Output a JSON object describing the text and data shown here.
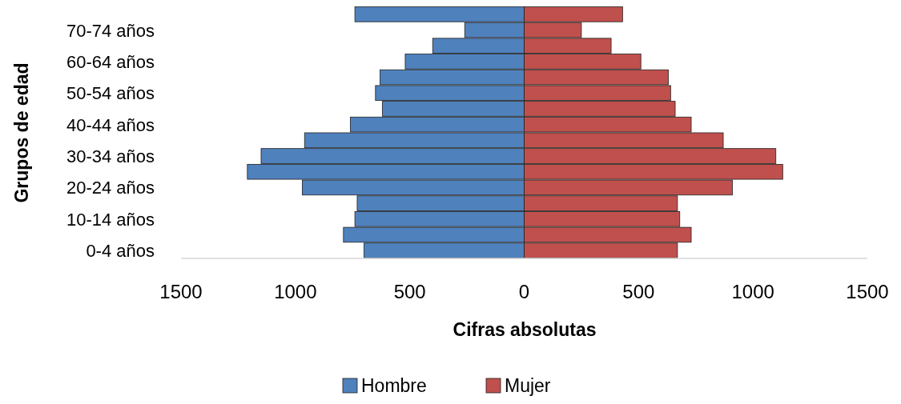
{
  "chart_data": {
    "type": "bar",
    "orientation": "horizontal",
    "stacked": true,
    "xlabel": "Cifras absolutas",
    "ylabel": "Grupos de edad",
    "categories": [
      null,
      "70-74 años",
      null,
      "60-64 años",
      null,
      "50-54 años",
      null,
      "40-44 años",
      null,
      "30-34 años",
      null,
      "20-24 años",
      null,
      "10-14 años",
      null,
      "0-4 años"
    ],
    "series": [
      {
        "name": "Hombre",
        "color": "#4f81bd",
        "values": [
          -740,
          -260,
          -400,
          -520,
          -630,
          -650,
          -620,
          -760,
          -960,
          -1150,
          -1210,
          -970,
          -730,
          -740,
          -790,
          -700
        ]
      },
      {
        "name": "Mujer",
        "color": "#c0504d",
        "values": [
          430,
          250,
          380,
          510,
          630,
          640,
          660,
          730,
          870,
          1100,
          1130,
          910,
          670,
          680,
          730,
          670
        ]
      }
    ],
    "xlim": [
      -1500,
      1500
    ],
    "xticks": [
      {
        "value": -1500,
        "label": "1500"
      },
      {
        "value": -1000,
        "label": "1000"
      },
      {
        "value": -500,
        "label": "500"
      },
      0,
      500,
      1000,
      1500
    ],
    "grid": false,
    "legend": "bottom"
  }
}
